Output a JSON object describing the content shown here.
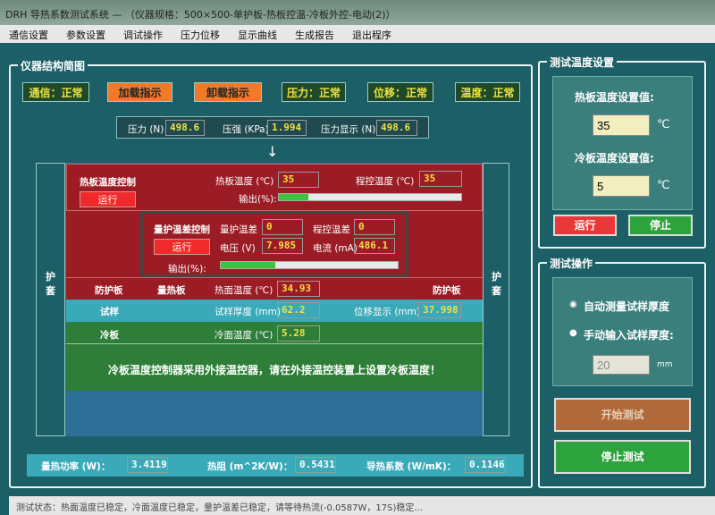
{
  "window": {
    "title": "DRH 导热系数测试系统 — （仪器规格：500×500-单护板-热板控温-冷板外控-电动(2)）"
  },
  "menu": [
    "通信设置",
    "参数设置",
    "调试操作",
    "压力位移",
    "显示曲线",
    "生成报告",
    "退出程序"
  ],
  "diagram": {
    "group_title": "仪器结构简图",
    "indicators": [
      {
        "label": "通信：正常",
        "state": "ok"
      },
      {
        "label": "加载指示",
        "state": "warn"
      },
      {
        "label": "卸载指示",
        "state": "warn"
      },
      {
        "label": "压力：正常",
        "state": "ok"
      },
      {
        "label": "位移：正常",
        "state": "ok"
      },
      {
        "label": "温度：正常",
        "state": "ok"
      }
    ],
    "pressure": {
      "force_label": "压力 (N)",
      "force": "498.6",
      "stress_label": "压强 (KPa)",
      "stress": "1.994",
      "display_label": "压力显示 (N)",
      "display": "498.6"
    },
    "jacket_label": "护套",
    "hot_plate": {
      "title": "热板温度控制",
      "run": "运行",
      "temp_label": "热板温度 (℃)",
      "temp": "35",
      "prog_label": "程控温度 (℃)",
      "prog": "35",
      "output_label": "输出(%):",
      "output_percent": 16
    },
    "guard": {
      "title": "量护温差控制",
      "run": "运行",
      "diff_label": "量护温差",
      "diff": "0",
      "prog_label": "程控温差",
      "prog": "0",
      "volt_label": "电压 (V)",
      "volt": "7.985",
      "curr_label": "电流 (mA)",
      "curr": "486.1",
      "output_label": "输出(%):",
      "output_percent": 31
    },
    "guard_plate": "防护板",
    "meter_plate": "量热板",
    "meter_temp_label": "热面温度 (℃)",
    "meter_temp": "34.93",
    "sample": {
      "label": "试样",
      "thick_label": "试样厚度 (mm)",
      "thick": "62.2",
      "disp_label": "位移显示 (mm)",
      "disp": "37.998"
    },
    "cold": {
      "label": "冷板",
      "temp_label": "冷面温度 (℃)",
      "temp": "5.28",
      "message": "冷板温度控制器采用外接温控器，请在外接温控装置上设置冷板温度！"
    },
    "results": {
      "power_label": "量热功率 (W)：",
      "power": "3.4119",
      "res_label": "热阻 (m^2K/W)：",
      "res": "0.5431",
      "k_label": "导热系数 (W/mK)：",
      "k": "0.1146"
    }
  },
  "temp_settings": {
    "title": "测试温度设置",
    "hot_label": "热板温度设置值:",
    "hot": "35",
    "cold_label": "冷板温度设置值:",
    "cold": "5",
    "unit": "℃",
    "run": "运行",
    "stop": "停止"
  },
  "test_ops": {
    "title": "测试操作",
    "auto": "自动测量试样厚度",
    "manual": "手动输入试样厚度:",
    "thickness": "20",
    "unit": "mm",
    "start": "开始测试",
    "stop": "停止测试"
  },
  "status": "测试状态：热面温度已稳定，冷面温度已稳定，量护温差已稳定，请等待热流(-0.0587W，17S)稳定..."
}
